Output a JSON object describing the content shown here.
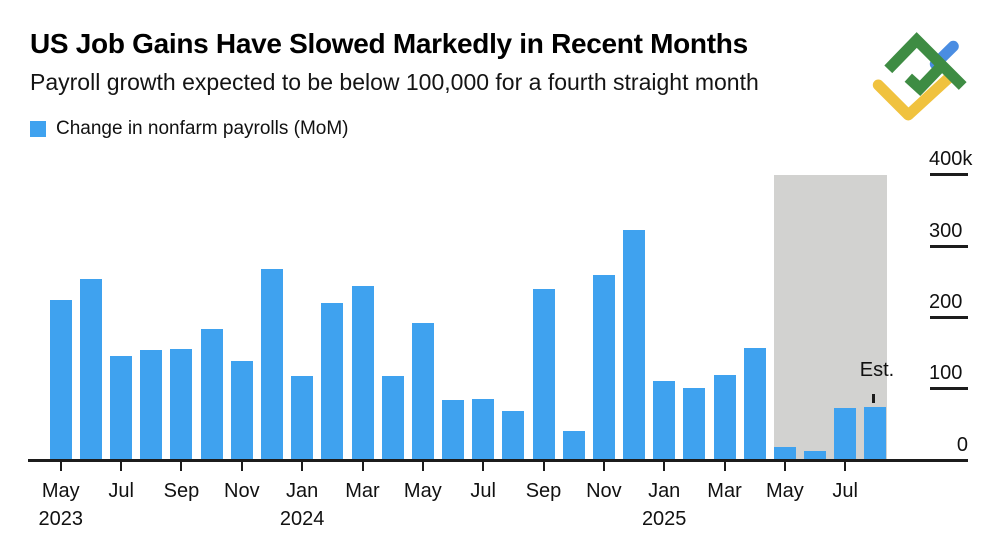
{
  "header": {
    "title": "US Job Gains Have Slowed Markedly in Recent Months",
    "subtitle": "Payroll growth expected to be below 100,000 for a fourth straight month"
  },
  "legend": {
    "label": "Change in nonfarm payrolls (MoM)",
    "swatch_color": "#3fa2ef"
  },
  "logo": {
    "name": "LiteFinance mark",
    "colors": {
      "green": "#3e8c43",
      "blue": "#4a8de2",
      "yellow": "#f0c23e"
    }
  },
  "chart_data": {
    "type": "bar",
    "title": "US Job Gains Have Slowed Markedly in Recent Months",
    "series_name": "Change in nonfarm payrolls (MoM)",
    "unit": "thousands of jobs",
    "x": [
      "May 2023",
      "Jun 2023",
      "Jul 2023",
      "Aug 2023",
      "Sep 2023",
      "Oct 2023",
      "Nov 2023",
      "Dec 2023",
      "Jan 2024",
      "Feb 2024",
      "Mar 2024",
      "Apr 2024",
      "May 2024",
      "Jun 2024",
      "Jul 2024",
      "Aug 2024",
      "Sep 2024",
      "Oct 2024",
      "Nov 2024",
      "Dec 2024",
      "Jan 2025",
      "Feb 2025",
      "Mar 2025",
      "Apr 2025",
      "May 2025",
      "Jun 2025",
      "Jul 2025",
      "Aug 2025"
    ],
    "values": [
      225,
      255,
      147,
      155,
      156,
      184,
      140,
      268,
      118,
      221,
      245,
      118,
      193,
      85,
      86,
      69,
      240,
      42,
      260,
      323,
      111,
      102,
      120,
      158,
      19,
      14,
      73,
      75
    ],
    "ylim": [
      0,
      400
    ],
    "ytick_labels": [
      "400k",
      "300",
      "200",
      "100",
      "0"
    ],
    "ytick_values": [
      400,
      300,
      200,
      100,
      0
    ],
    "x_ticks": [
      {
        "month": "May",
        "year": "2023",
        "bar_index": 0
      },
      {
        "month": "Jul",
        "bar_index": 2
      },
      {
        "month": "Sep",
        "bar_index": 4
      },
      {
        "month": "Nov",
        "bar_index": 6
      },
      {
        "month": "Jan",
        "year": "2024",
        "bar_index": 8
      },
      {
        "month": "Mar",
        "bar_index": 10
      },
      {
        "month": "May",
        "bar_index": 12
      },
      {
        "month": "Jul",
        "bar_index": 14
      },
      {
        "month": "Sep",
        "bar_index": 16
      },
      {
        "month": "Nov",
        "bar_index": 18
      },
      {
        "month": "Jan",
        "year": "2025",
        "bar_index": 20
      },
      {
        "month": "Mar",
        "bar_index": 22
      },
      {
        "month": "May",
        "bar_index": 24
      },
      {
        "month": "Jul",
        "bar_index": 26
      }
    ],
    "bar_color": "#3fa2ef",
    "axis_color": "#1c1c1c",
    "grid": false,
    "legend_position": "top-left",
    "y_axis_side": "right",
    "highlight": {
      "label": "Est.",
      "months": [
        "May 2025",
        "Jun 2025",
        "Jul 2025",
        "Aug 2025"
      ],
      "estimated_month": "Aug 2025",
      "color": "#d2d2d0"
    }
  }
}
